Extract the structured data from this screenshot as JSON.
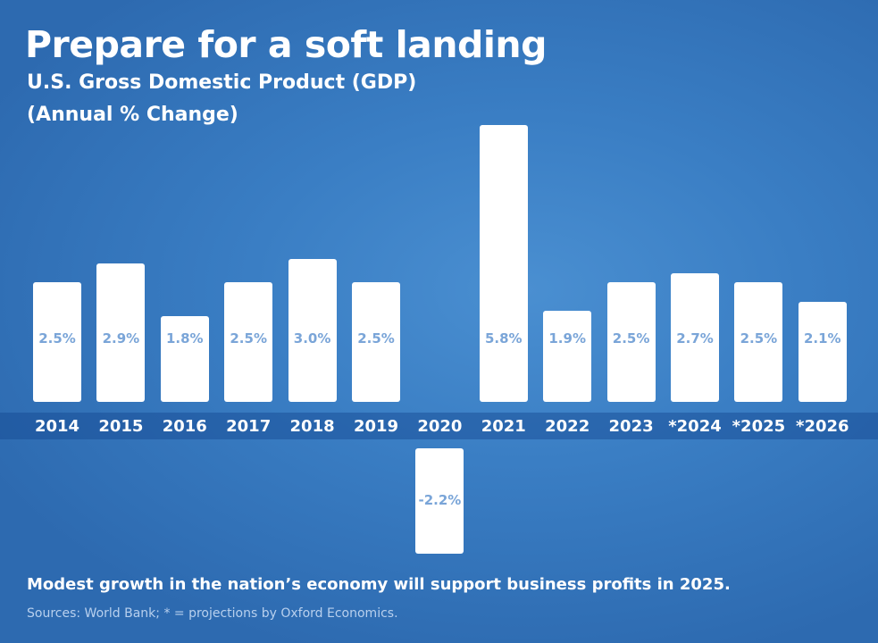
{
  "title": "Prepare for a soft landing",
  "subtitle": "U.S. Gross Domestic Product (GDP)",
  "subtitle2": "(Annual % Change)",
  "chart_data": {
    "type": "bar",
    "title": "U.S. Gross Domestic Product (GDP) (Annual % Change)",
    "xlabel": "",
    "ylabel": "Annual % Change",
    "categories": [
      "2014",
      "2015",
      "2016",
      "2017",
      "2018",
      "2019",
      "2020",
      "2021",
      "2022",
      "2023",
      "*2024",
      "*2025",
      "*2026"
    ],
    "values": [
      2.5,
      2.9,
      1.8,
      2.5,
      3.0,
      2.5,
      -2.2,
      5.8,
      1.9,
      2.5,
      2.7,
      2.5,
      2.1
    ],
    "value_labels": [
      "2.5%",
      "2.9%",
      "1.8%",
      "2.5%",
      "3.0%",
      "2.5%",
      "-2.2%",
      "5.8%",
      "1.9%",
      "2.5%",
      "2.7%",
      "2.5%",
      "2.1%"
    ],
    "ylim": [
      -2.5,
      6.5
    ]
  },
  "footnote": "Modest growth in the nation’s economy will support business profits in 2025.",
  "source": "Sources: World Bank; * = projections by Oxford Economics.",
  "colors": {
    "background": "#3a7ec4",
    "bar": "#ffffff",
    "value_label": "#7aa5d8",
    "text": "#ffffff"
  }
}
